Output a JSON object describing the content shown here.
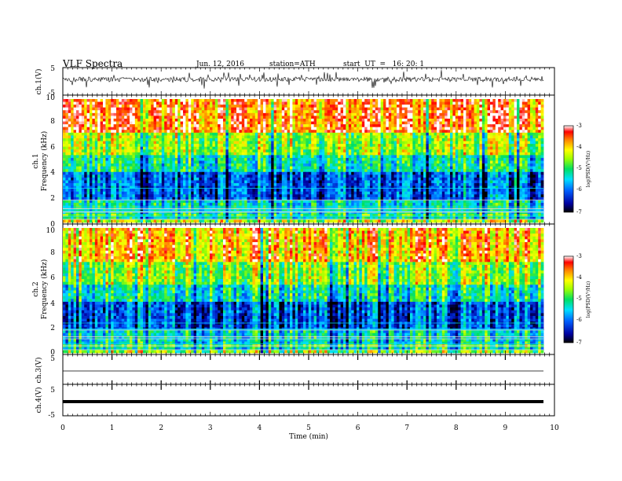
{
  "header": {
    "title": "VLF  Spectra",
    "date": "Jun. 12, 2016",
    "station": "station=ATH",
    "start": "start  UT  =   16: 20: 1"
  },
  "chart_data": [
    {
      "type": "line",
      "name": "ch1-waveform",
      "ylabel": "ch.1(V)",
      "ylim": [
        -5,
        5
      ],
      "yticks": [
        "5",
        "-5"
      ]
    },
    {
      "type": "heatmap",
      "name": "ch1-spectrogram",
      "ylabel_top": "ch.1",
      "ylabel": "Frequency  (kHz)",
      "ylim": [
        0,
        10
      ],
      "yticks": [
        "0",
        "2",
        "4",
        "6",
        "8",
        "10"
      ],
      "colorbar": {
        "label": "log(PSD(V²/Hz)",
        "ticks": [
          "-3",
          "-4",
          "-5",
          "-6",
          "-7"
        ],
        "range": [
          -7,
          -3
        ]
      }
    },
    {
      "type": "heatmap",
      "name": "ch2-spectrogram",
      "ylabel_top": "ch.2",
      "ylabel": "Frequency  (kHz)",
      "ylim": [
        0,
        10
      ],
      "yticks": [
        "0",
        "2",
        "4",
        "6",
        "8",
        "10"
      ],
      "colorbar": {
        "label": "log(PSD(V²/Hz)",
        "ticks": [
          "-3",
          "-4",
          "-5",
          "-6",
          "-7"
        ],
        "range": [
          -7,
          -3
        ]
      }
    },
    {
      "type": "line",
      "name": "ch3-waveform",
      "ylabel": "ch.3(V)",
      "ylim": [
        -5,
        5
      ],
      "yticks": [
        "5"
      ]
    },
    {
      "type": "line",
      "name": "ch4-waveform",
      "ylabel": "ch.4(V)",
      "ylim": [
        -5,
        5
      ],
      "yticks": [
        "5",
        "-5"
      ]
    }
  ],
  "xaxis": {
    "label": "Time  (min)",
    "xlim": [
      0,
      10
    ],
    "ticks": [
      "0",
      "1",
      "2",
      "3",
      "4",
      "5",
      "6",
      "7",
      "8",
      "9",
      "10"
    ]
  },
  "colors": {
    "low": "#000080",
    "mid_low": "#00c8ff",
    "mid": "#00e060",
    "mid_high": "#ffff00",
    "high": "#ff2000"
  }
}
